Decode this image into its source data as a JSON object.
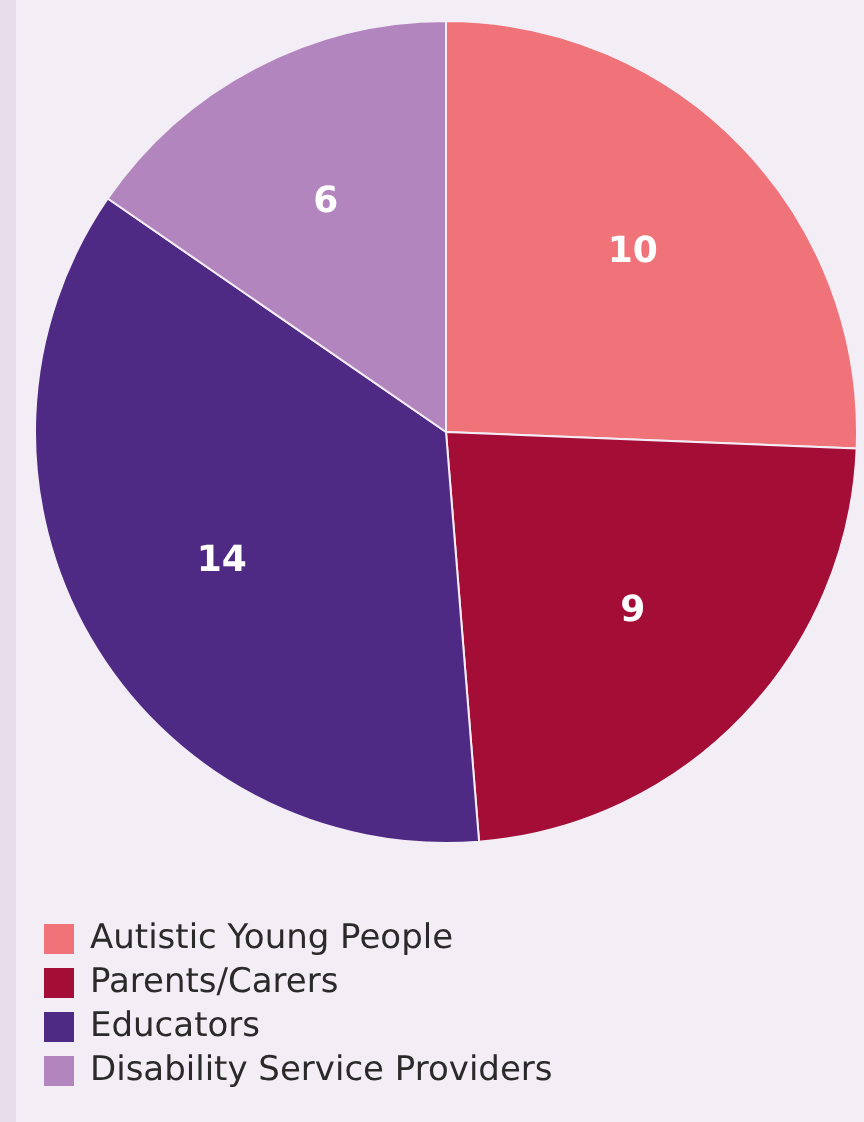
{
  "chart_data": {
    "type": "pie",
    "categories": [
      "Autistic Young People",
      "Parents/Carers",
      "Educators",
      "Disability Service Providers"
    ],
    "values": [
      10,
      9,
      14,
      6
    ],
    "colors": [
      "#f0737a",
      "#a30d36",
      "#4f2a84",
      "#b385bf"
    ],
    "data_labels": true,
    "legend": "bottom left"
  }
}
